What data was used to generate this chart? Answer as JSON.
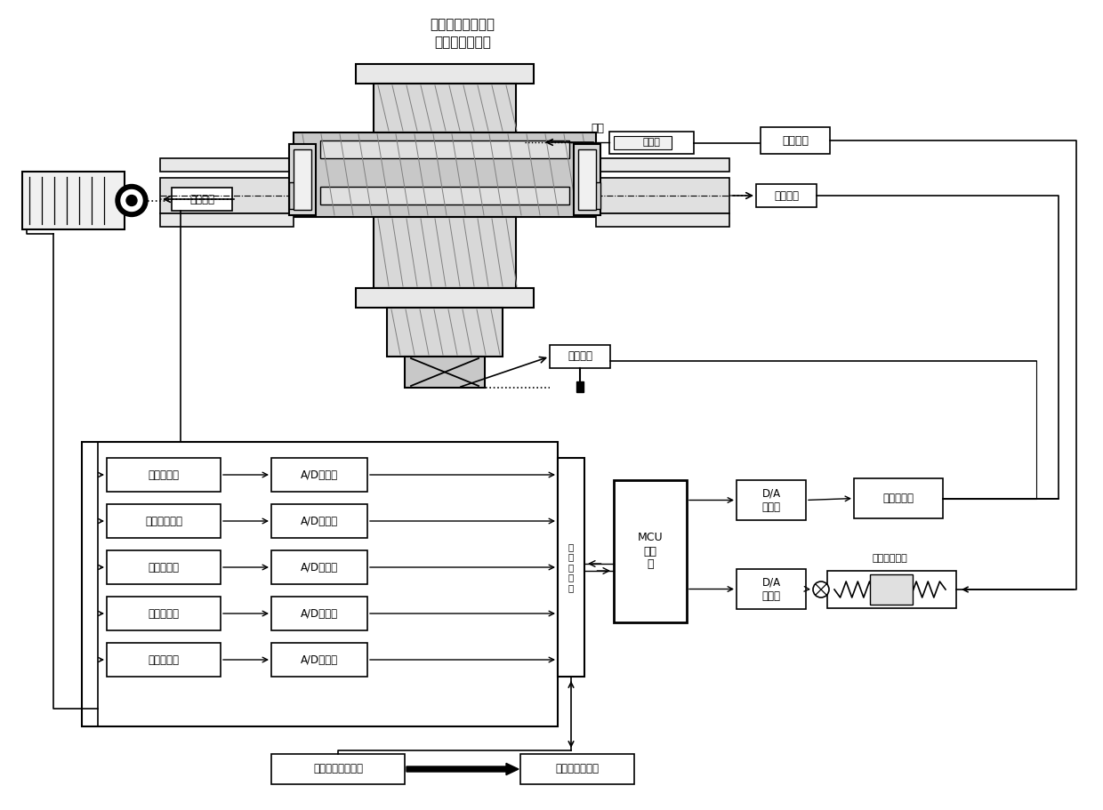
{
  "title_line1": "大功率磁流变液恒",
  "title_line2": "加速软启动装置",
  "bg_color": "#ffffff",
  "box_color": "#ffffff",
  "line_color": "#000000",
  "text_color": "#000000",
  "font_size_title": 11,
  "font_size_label": 9,
  "font_size_box": 8.5,
  "sensors": [
    "速度传感器",
    "加速度传感器",
    "电流传感器",
    "压力传感器",
    "速度传感器"
  ],
  "ad_converters": [
    "A/D转换器",
    "A/D转换器",
    "A/D转换器",
    "A/D转换器",
    "A/D转换器"
  ],
  "data_processor": "数\n据\n处\n理\n器",
  "mcu": "MCU\n控制\n器",
  "da_converter1": "D/A\n转换器",
  "da_converter2": "D/A\n转换器",
  "current_controller": "电流控制器",
  "expand_data": "扩展数据连接设备",
  "upper_machine": "上位机或编程卡",
  "speed_input": "转速输入",
  "speed_output": "转速输出",
  "pressure_label": "压力",
  "hydraulic_cylinder": "液压缸",
  "hydraulic_input": "液压输入",
  "current_input": "电流输入",
  "hydraulic_valve_label": "液压缸控制阀"
}
